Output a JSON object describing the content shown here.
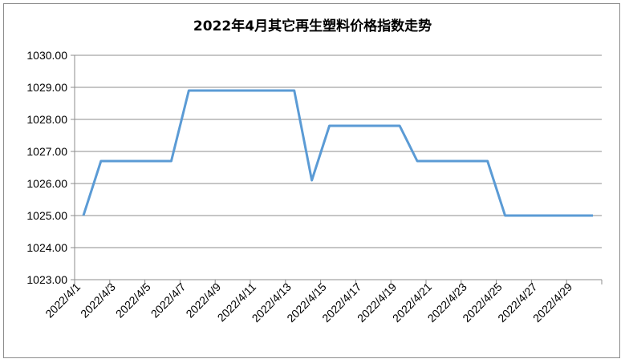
{
  "chart_data": {
    "type": "line",
    "title": "2022年4月其它再生塑料价格指数走势",
    "xlabel": "",
    "ylabel": "",
    "ylim": [
      1023.0,
      1030.0
    ],
    "yticks": [
      "1023.00",
      "1024.00",
      "1025.00",
      "1026.00",
      "1027.00",
      "1028.00",
      "1029.00",
      "1030.00"
    ],
    "x_tick_labels": [
      "2022/4/1",
      "2022/4/3",
      "2022/4/5",
      "2022/4/7",
      "2022/4/9",
      "2022/4/11",
      "2022/4/13",
      "2022/4/15",
      "2022/4/17",
      "2022/4/19",
      "2022/4/21",
      "2022/4/23",
      "2022/4/25",
      "2022/4/27",
      "2022/4/29"
    ],
    "grid": true,
    "legend": "none",
    "series": [
      {
        "color": "#5b9bd5",
        "points": [
          {
            "x": "2022/4/1",
            "y": 1025.0
          },
          {
            "x": "2022/4/2",
            "y": 1026.7
          },
          {
            "x": "2022/4/6",
            "y": 1026.7
          },
          {
            "x": "2022/4/7",
            "y": 1028.9
          },
          {
            "x": "2022/4/13",
            "y": 1028.9
          },
          {
            "x": "2022/4/14",
            "y": 1026.1
          },
          {
            "x": "2022/4/15",
            "y": 1027.8
          },
          {
            "x": "2022/4/19",
            "y": 1027.8
          },
          {
            "x": "2022/4/20",
            "y": 1026.7
          },
          {
            "x": "2022/4/24",
            "y": 1026.7
          },
          {
            "x": "2022/4/25",
            "y": 1025.0
          },
          {
            "x": "2022/4/30",
            "y": 1025.0
          }
        ]
      }
    ]
  }
}
